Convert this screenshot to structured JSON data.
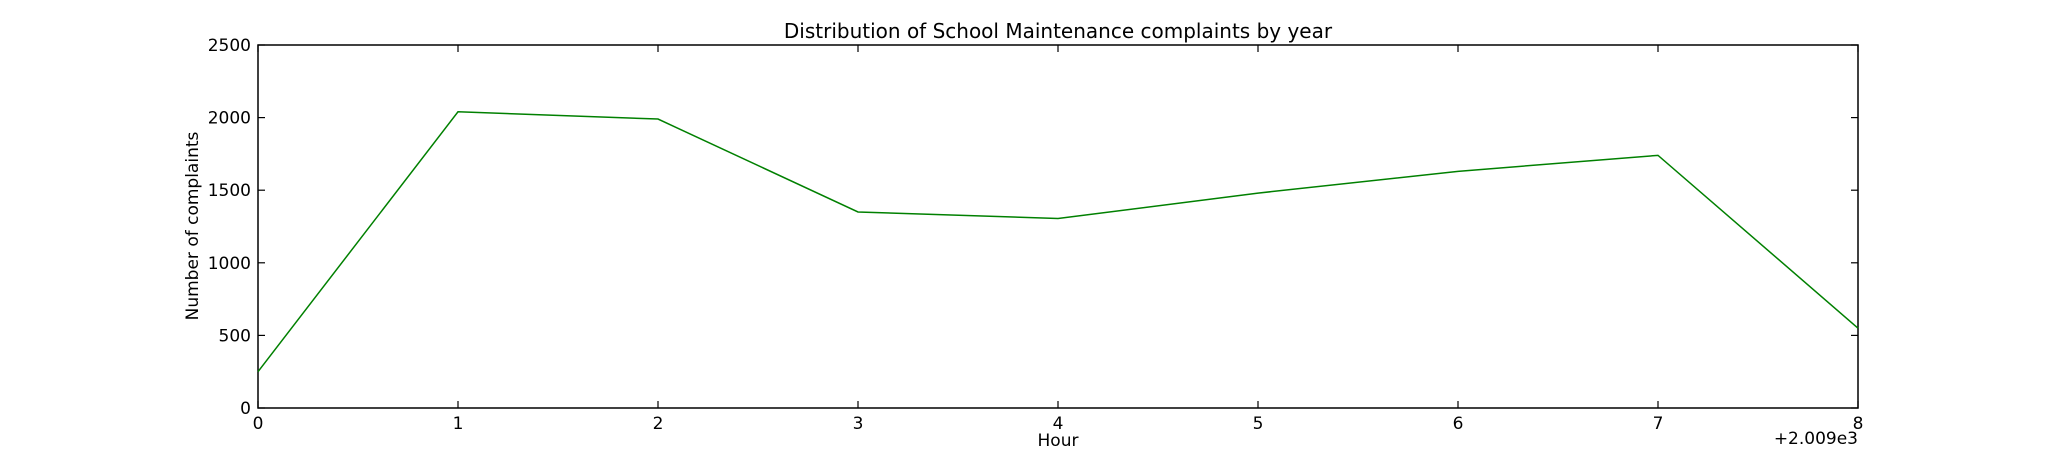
{
  "chart_data": {
    "type": "line",
    "title": "Distribution of  School Maintenance complaints by year",
    "xlabel": "Hour",
    "ylabel": "Number of complaints",
    "x_offset_label": "+2.009e3",
    "x": [
      0,
      1,
      2,
      3,
      4,
      5,
      6,
      7,
      8
    ],
    "x_tick_labels": [
      "0",
      "1",
      "2",
      "3",
      "4",
      "5",
      "6",
      "7",
      "8"
    ],
    "xlim": [
      0,
      8
    ],
    "ylim": [
      0,
      2500
    ],
    "y_ticks": [
      0,
      500,
      1000,
      1500,
      2000,
      2500
    ],
    "y_tick_labels": [
      "0",
      "500",
      "1000",
      "1500",
      "2000",
      "2500"
    ],
    "grid": false,
    "series": [
      {
        "color": "#008000",
        "values": [
          250,
          2040,
          1990,
          1350,
          1305,
          1480,
          1630,
          1740,
          550
        ]
      }
    ]
  }
}
